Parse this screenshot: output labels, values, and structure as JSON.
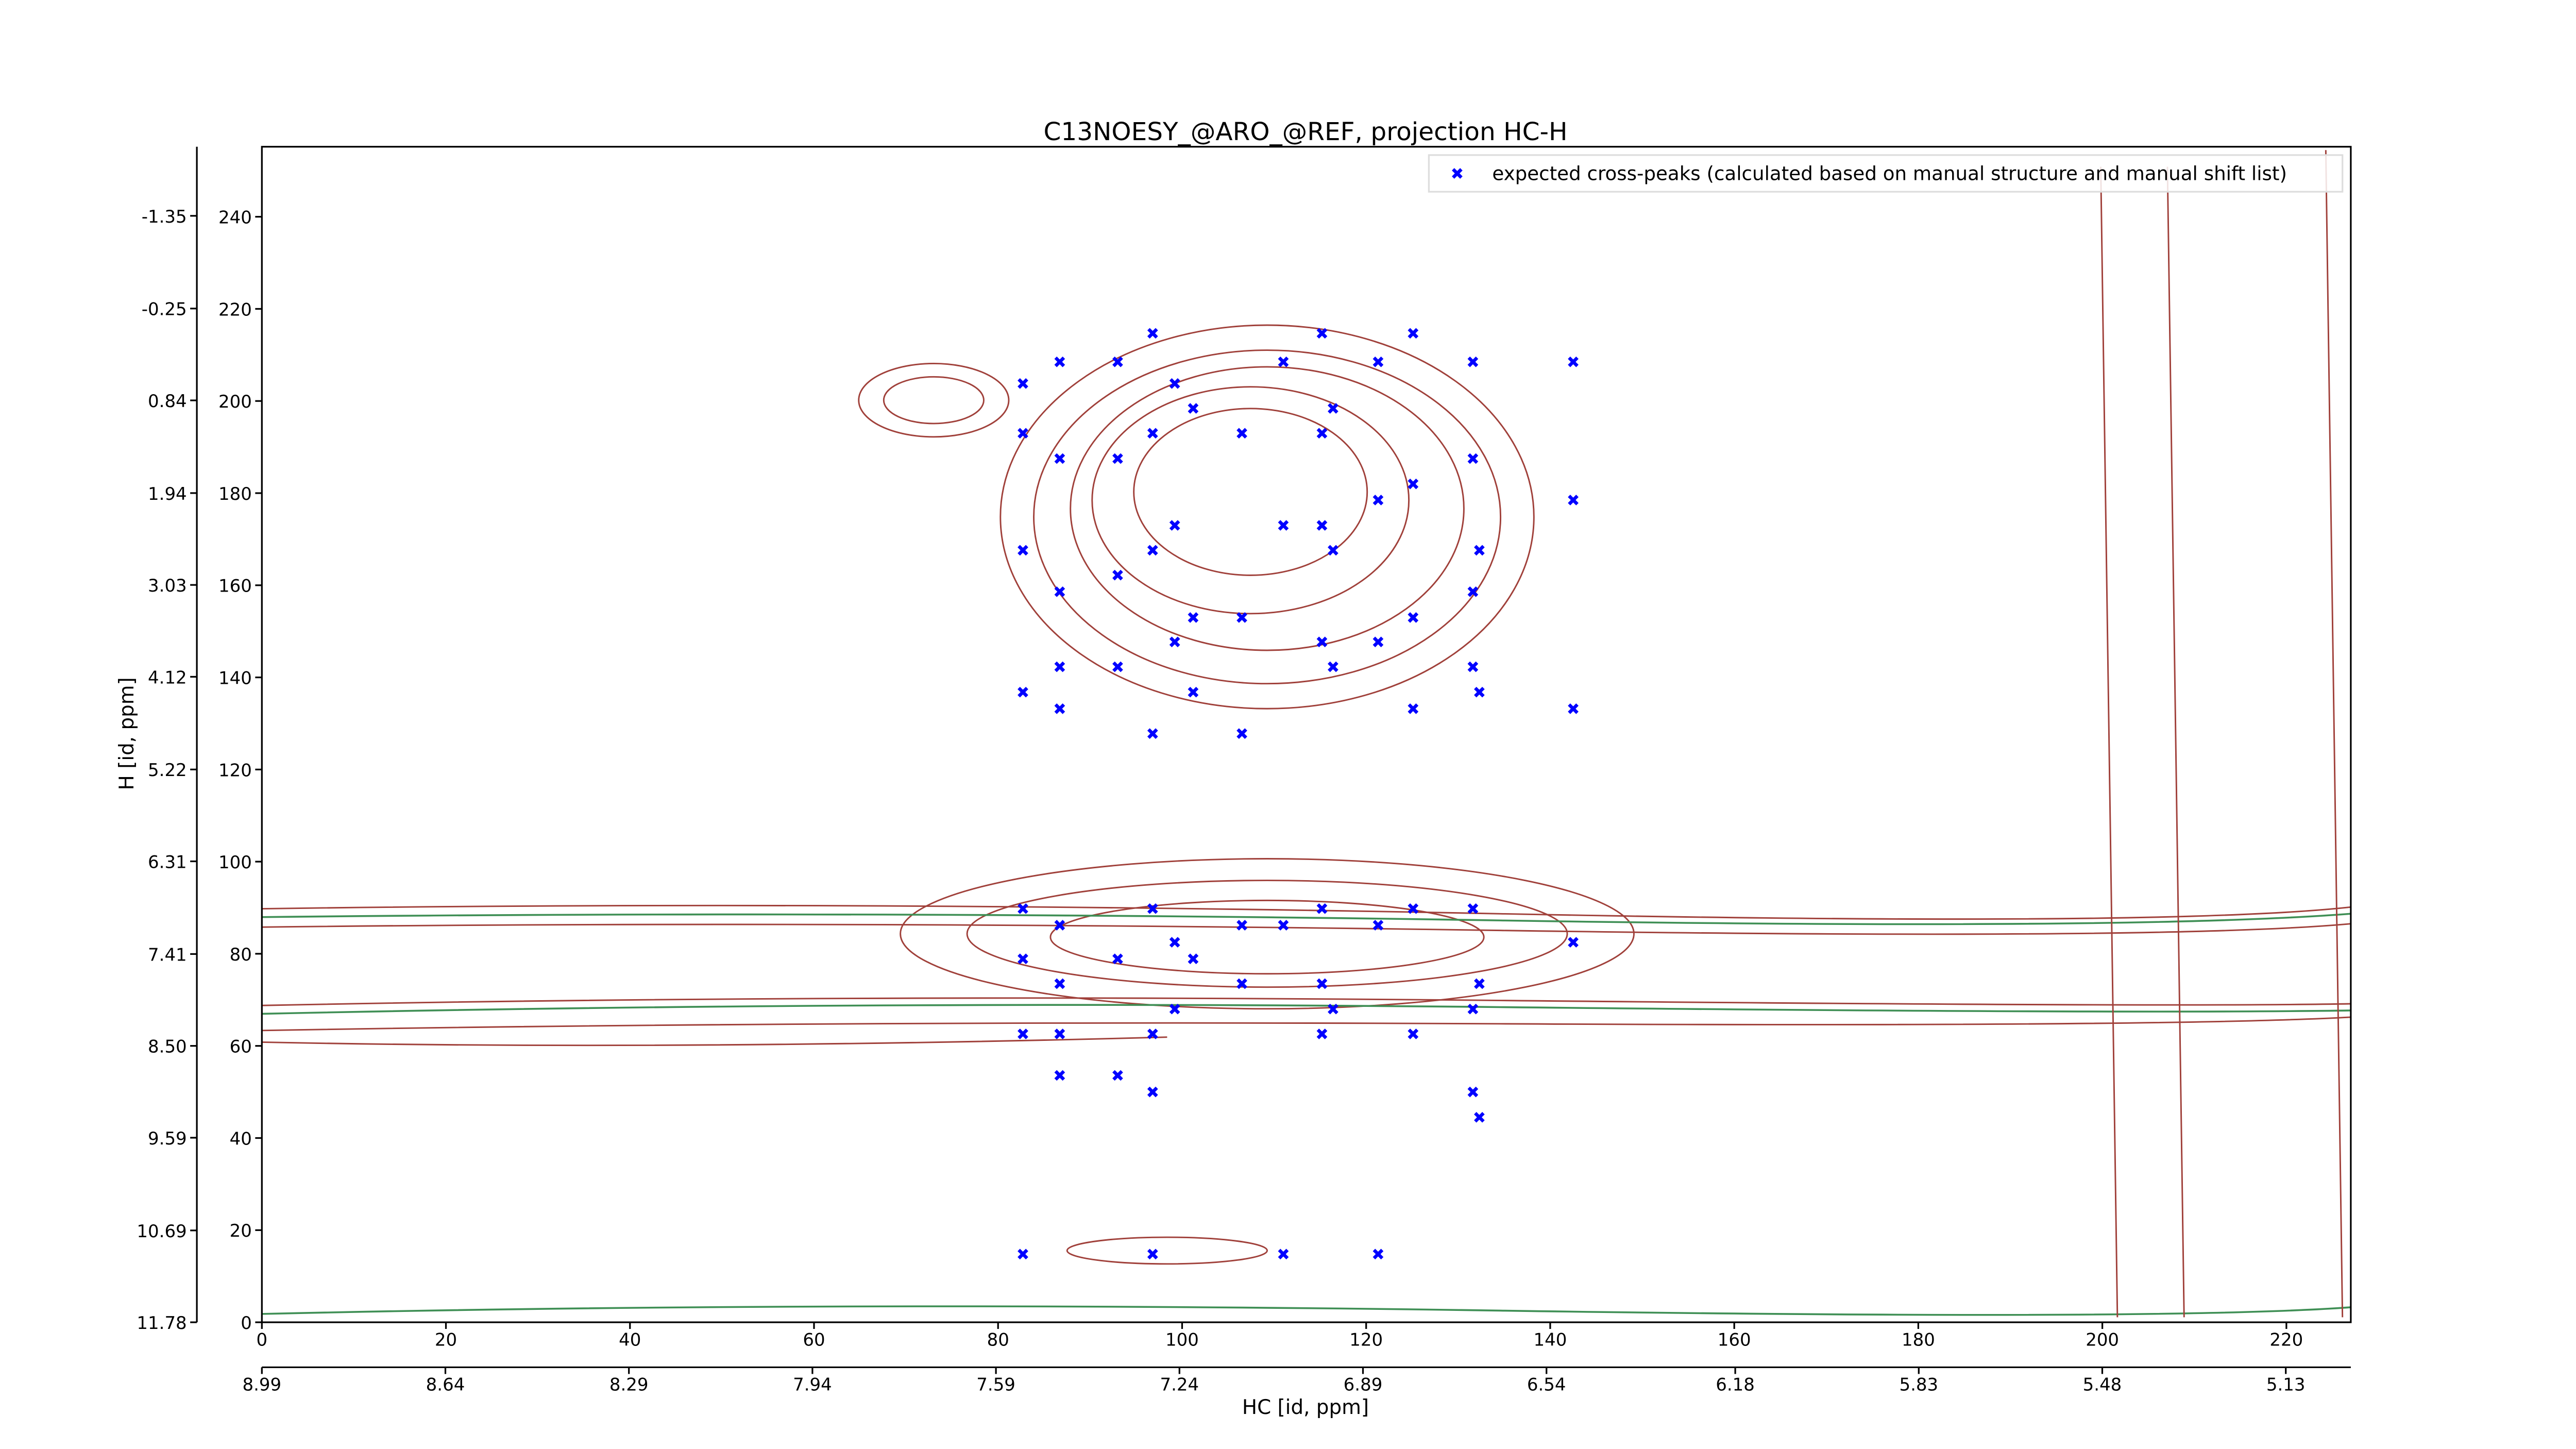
{
  "chart_data": {
    "type": "scatter",
    "title": "C13NOESY_@ARO_@REF, projection HC-H",
    "xlabel": "HC [id, ppm]",
    "ylabel": "H [id, ppm]",
    "legend": "upper right",
    "series": [
      {
        "name": "expected cross-peaks (calculated based on manual structure and manual shift list)",
        "color": "#0000ff",
        "x": [
          82.7,
          82.7,
          82.7,
          82.7,
          82.7,
          82.7,
          82.7,
          82.7,
          86.7,
          86.7,
          86.7,
          86.7,
          86.7,
          86.7,
          86.7,
          86.7,
          86.7,
          93,
          93,
          93,
          93,
          93,
          93,
          96.8,
          96.8,
          96.8,
          96.8,
          96.8,
          96.8,
          96.8,
          96.8,
          99.2,
          99.2,
          99.2,
          99.2,
          99.2,
          101.2,
          101.2,
          101.2,
          101.2,
          106.5,
          106.5,
          106.5,
          106.5,
          106.5,
          111,
          111,
          111,
          111,
          115.2,
          115.2,
          115.2,
          115.2,
          115.2,
          115.2,
          115.2,
          116.4,
          116.4,
          116.4,
          116.4,
          121.3,
          121.3,
          121.3,
          121.3,
          121.3,
          125.1,
          125.1,
          125.1,
          125.1,
          125.1,
          125.1,
          131.6,
          131.6,
          131.6,
          131.6,
          131.6,
          131.6,
          131.6,
          132.3,
          132.3,
          132.3,
          132.3,
          142.5,
          142.5,
          142.5,
          142.5
        ],
        "values": [
          203.8,
          193,
          167.6,
          136.8,
          89.8,
          78.9,
          62.6,
          14.8,
          208.5,
          187.5,
          158.6,
          142.3,
          133.2,
          86.2,
          73.5,
          62.6,
          53.6,
          208.5,
          187.5,
          162.2,
          142.3,
          78.9,
          53.6,
          214.7,
          193,
          167.6,
          127.8,
          89.8,
          62.6,
          50,
          14.8,
          203.8,
          173,
          147.7,
          82.5,
          68,
          198.4,
          153,
          136.8,
          78.9,
          193,
          153,
          127.8,
          86.2,
          73.5,
          208.5,
          173,
          86.2,
          14.8,
          214.7,
          193,
          173,
          147.7,
          89.8,
          73.5,
          62.6,
          198.4,
          167.6,
          142.3,
          68,
          208.5,
          178.5,
          147.7,
          86.2,
          14.8,
          214.7,
          182,
          153,
          133.2,
          89.8,
          62.6,
          208.5,
          187.5,
          158.6,
          142.3,
          89.8,
          68,
          50,
          167.6,
          136.8,
          73.5,
          44.5,
          208.5,
          178.5,
          133.2,
          82.5
        ]
      }
    ],
    "xlim": [
      0,
      227
    ],
    "ylim": [
      0,
      255.2
    ],
    "xticks": [
      0,
      20,
      40,
      60,
      80,
      100,
      120,
      140,
      160,
      180,
      200,
      220
    ],
    "yticks": [
      0,
      20,
      40,
      60,
      80,
      100,
      120,
      140,
      160,
      180,
      200,
      220,
      240
    ],
    "x2lim": [
      8.99,
      5.006
    ],
    "x2ticks": [
      8.99,
      8.64,
      8.29,
      7.94,
      7.59,
      7.24,
      6.89,
      6.54,
      6.18,
      5.83,
      5.48,
      5.13
    ],
    "y2lim": [
      11.78,
      -2.17
    ],
    "y2ticks": [
      11.78,
      10.69,
      9.59,
      {
        "value": 8.5,
        "label": "8.50"
      },
      7.41,
      6.31,
      5.22,
      4.12,
      3.03,
      1.94,
      0.84,
      -0.25,
      -1.35
    ]
  }
}
